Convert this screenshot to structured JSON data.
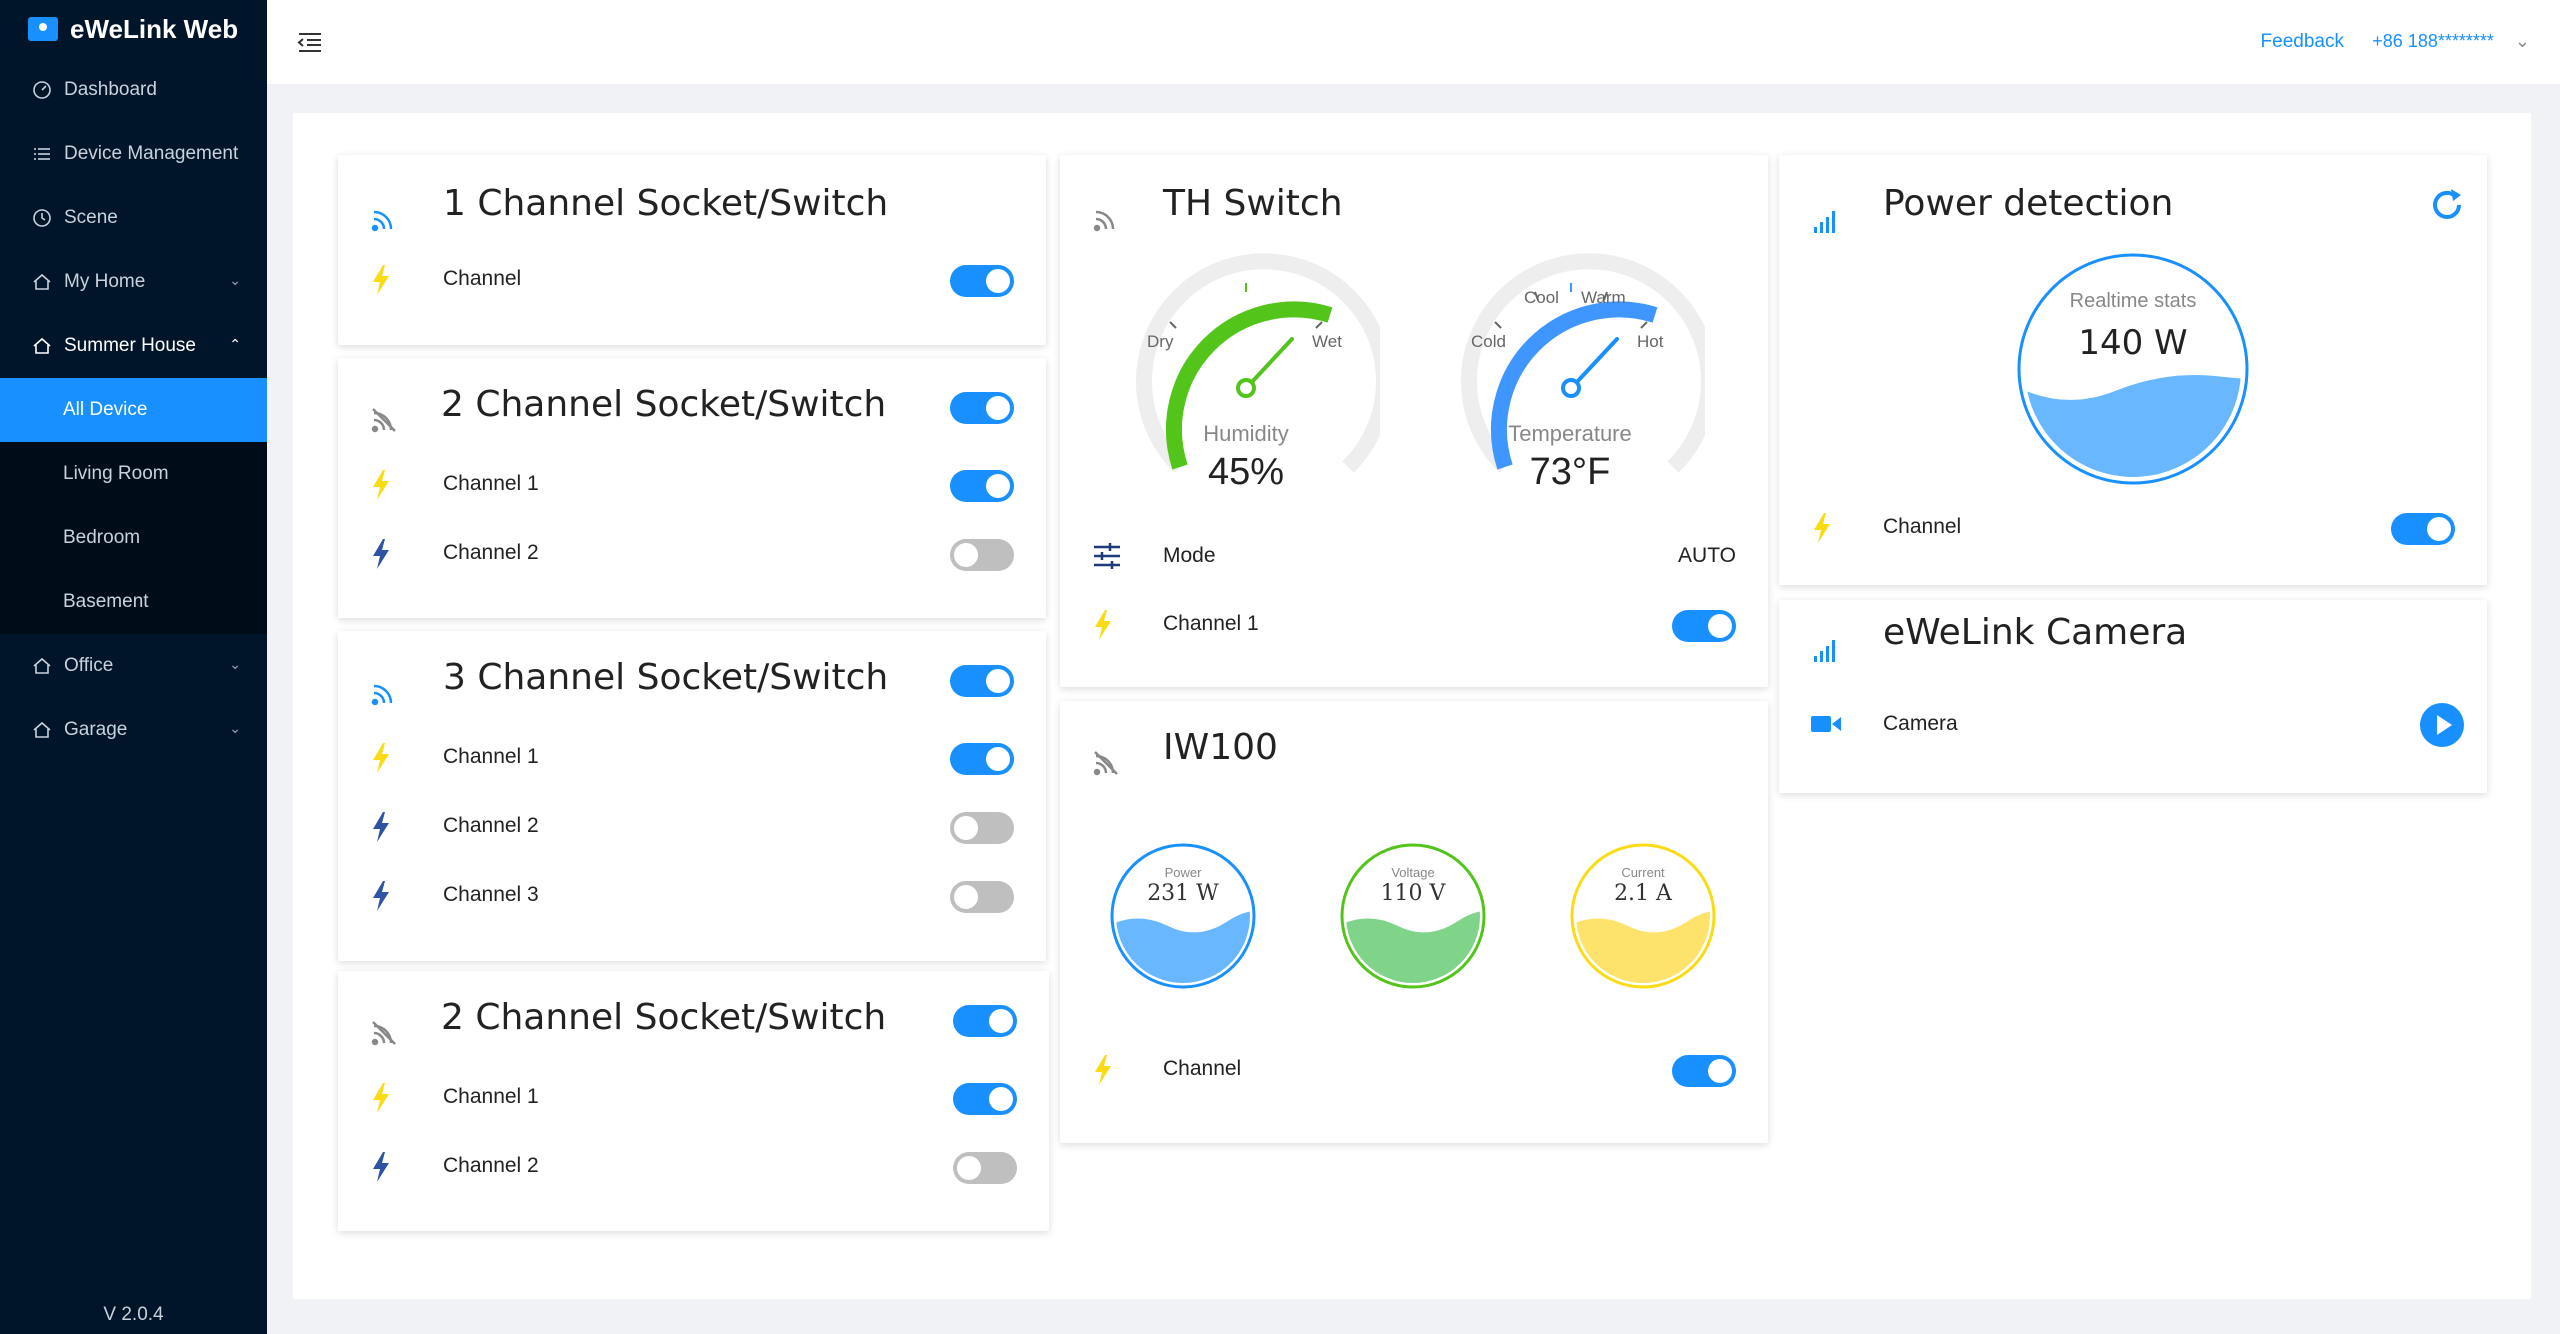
{
  "app": {
    "title": "eWeLink Web",
    "version": "V 2.0.4"
  },
  "sidebar": {
    "items": [
      {
        "label": "Dashboard"
      },
      {
        "label": "Device Management"
      },
      {
        "label": "Scene"
      },
      {
        "label": "My Home"
      },
      {
        "label": "Summer House"
      },
      {
        "label": "Office"
      },
      {
        "label": "Garage"
      }
    ],
    "sub_items": [
      {
        "label": "All Device",
        "active": true
      },
      {
        "label": "Living Room"
      },
      {
        "label": "Bedroom"
      },
      {
        "label": "Basement"
      }
    ]
  },
  "header": {
    "feedback": "Feedback",
    "account": "+86 188********"
  },
  "devices": {
    "ch1": {
      "title": "1 Channel Socket/Switch",
      "channels": [
        {
          "label": "Channel",
          "on": true
        }
      ]
    },
    "ch2a": {
      "title": "2 Channel Socket/Switch",
      "master_on": true,
      "channels": [
        {
          "label": "Channel 1",
          "on": true
        },
        {
          "label": "Channel 2",
          "on": false
        }
      ]
    },
    "ch3": {
      "title": "3 Channel Socket/Switch",
      "master_on": true,
      "channels": [
        {
          "label": "Channel 1",
          "on": true
        },
        {
          "label": "Channel 2",
          "on": false
        },
        {
          "label": "Channel 3",
          "on": false
        }
      ]
    },
    "ch2b": {
      "title": "2 Channel Socket/Switch",
      "master_on": true,
      "channels": [
        {
          "label": "Channel 1",
          "on": true
        },
        {
          "label": "Channel 2",
          "on": false
        }
      ]
    },
    "th": {
      "title": "TH Switch",
      "humidity": {
        "label": "Humidity",
        "value": "45%",
        "ticks": [
          "Dry",
          "Wet"
        ]
      },
      "temperature": {
        "label": "Temperature",
        "value": "73°F",
        "ticks": [
          "Cold",
          "Cool",
          "Warm",
          "Hot"
        ]
      },
      "mode_label": "Mode",
      "mode_value": "AUTO",
      "channel": {
        "label": "Channel 1",
        "on": true
      }
    },
    "iw100": {
      "title": "IW100",
      "power": {
        "caption": "Power",
        "value": "231 W"
      },
      "voltage": {
        "caption": "Voltage",
        "value": "110 V"
      },
      "current": {
        "caption": "Current",
        "value": "2.1 A"
      },
      "channel": {
        "label": "Channel",
        "on": true
      }
    },
    "power": {
      "title": "Power detection",
      "stats_label": "Realtime stats",
      "stats_value": "140 W",
      "channel": {
        "label": "Channel",
        "on": true
      }
    },
    "camera": {
      "title": "eWeLink Camera",
      "label": "Camera"
    }
  },
  "colors": {
    "primary": "#1890ff",
    "sidebar": "#001529",
    "bolt_on": "#fadb14",
    "bolt_off": "#2f54a4",
    "green": "#52c41a",
    "yellow": "#fadb14"
  },
  "icons": {
    "signal_on": "wifi-signal-icon",
    "signal_off": "wifi-offline-icon",
    "bolt": "lightning-icon",
    "camera": "camera-icon",
    "refresh": "refresh-icon",
    "play": "play-icon",
    "mode": "sliders-icon"
  }
}
